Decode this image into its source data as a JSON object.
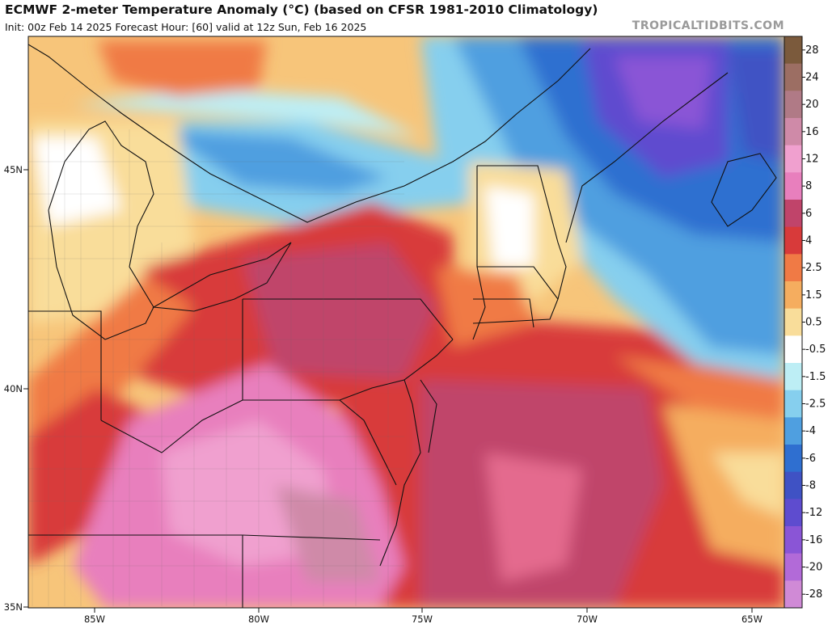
{
  "header": {
    "title": "ECMWF 2-meter Temperature Anomaly (°C) (based on CFSR 1981-2010 Climatology)",
    "subtitle": "Init: 00z Feb 14 2025   Forecast Hour: [60]   valid at 12z Sun, Feb 16 2025",
    "brand": "TROPICALTIDBITS.COM"
  },
  "axes": {
    "lon_labels": [
      "85W",
      "80W",
      "75W",
      "70W",
      "65W"
    ],
    "lat_labels": [
      "45N",
      "40N",
      "35N"
    ]
  },
  "colorbar": {
    "labels": [
      "28",
      "24",
      "20",
      "16",
      "12",
      "8",
      "6",
      "4",
      "2.5",
      "1.5",
      "0.5",
      "-0.5",
      "-1.5",
      "-2.5",
      "-4",
      "-6",
      "-8",
      "-12",
      "-16",
      "-20",
      "-28"
    ],
    "colors": [
      "#7b5a3c",
      "#9c6e63",
      "#b07a86",
      "#cf8aa8",
      "#f0a0cf",
      "#e87fbd",
      "#c0446a",
      "#d83a3a",
      "#f07a45",
      "#f5ad5f",
      "#f9dd9a",
      "#ffffff",
      "#bdeef5",
      "#86cfee",
      "#4f9fe0",
      "#2f6fd0",
      "#3f52c4",
      "#5e4ccf",
      "#8a55d6",
      "#b26ad8",
      "#d08ad6"
    ]
  },
  "legend_semantics": {
    "warm": "anomaly above normal",
    "cold": "anomaly below normal"
  }
}
